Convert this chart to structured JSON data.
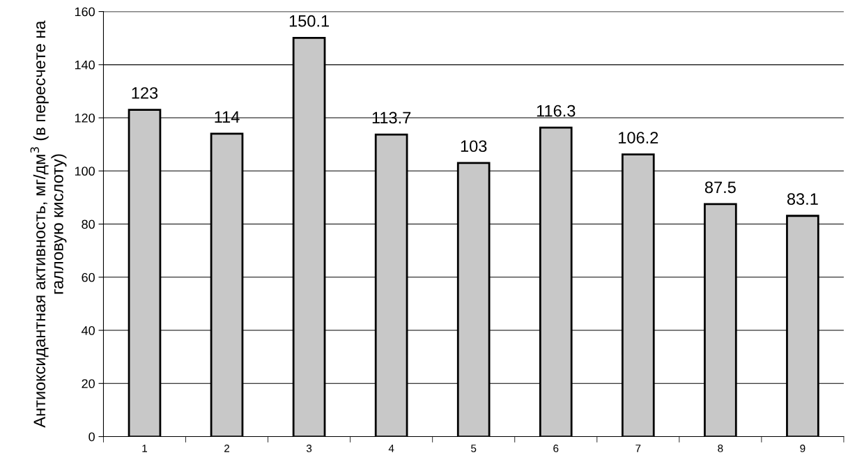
{
  "chart_data": {
    "type": "bar",
    "ylabel": "Антиоксидантная активность, мг/дм$^{3}$ (в пересчете на\nгалловую кислоту)",
    "categories": [
      "1",
      "2",
      "3",
      "4",
      "5",
      "6",
      "7",
      "8",
      "9"
    ],
    "values": [
      123,
      114,
      150.1,
      113.7,
      103,
      116.3,
      106.2,
      87.5,
      83.1
    ],
    "color": "#c8c8c8",
    "ylim": [
      0,
      160
    ],
    "yticks": [
      0,
      20,
      40,
      60,
      80,
      100,
      120,
      140,
      160
    ],
    "grid": "y",
    "data_labels": true
  }
}
